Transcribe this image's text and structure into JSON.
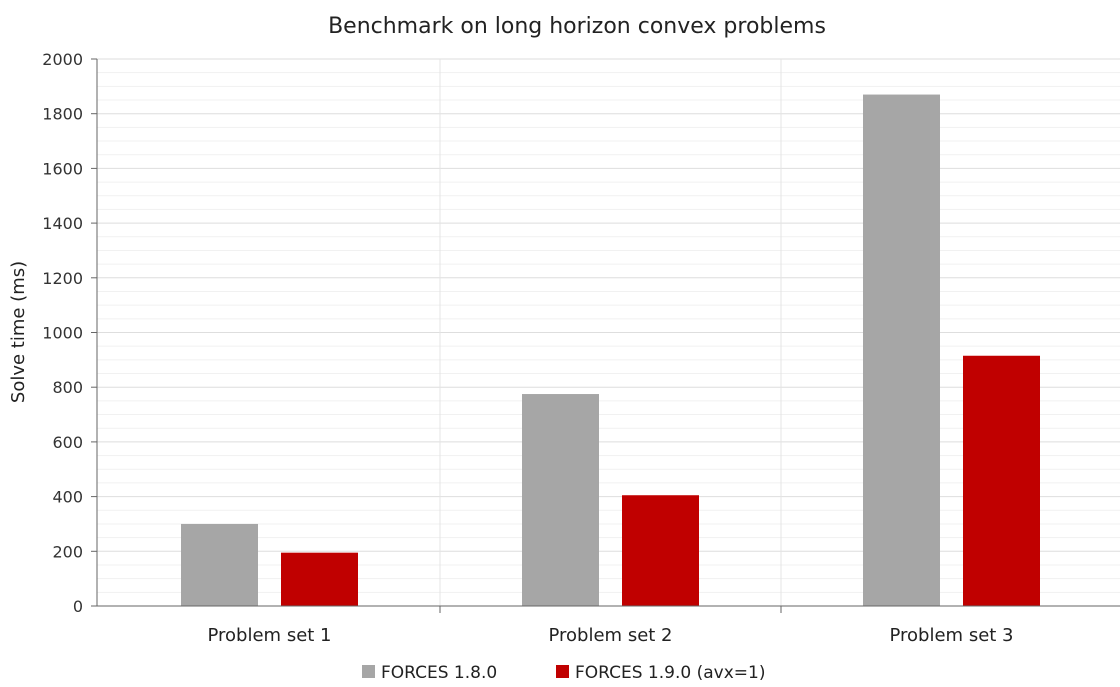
{
  "chart_data": {
    "type": "bar",
    "title": "Benchmark on long horizon convex problems",
    "xlabel": "",
    "ylabel": "Solve time (ms)",
    "ylim": [
      0,
      2000
    ],
    "yticks": [
      0,
      200,
      400,
      600,
      800,
      1000,
      1200,
      1400,
      1600,
      1800,
      2000
    ],
    "minor_grid_step": 50,
    "grid": true,
    "legend_position": "bottom-center",
    "categories": [
      "Problem set 1",
      "Problem set 2",
      "Problem set 3"
    ],
    "series": [
      {
        "name": "FORCES 1.8.0",
        "color": "#a6a6a6",
        "values": [
          300,
          775,
          1870
        ]
      },
      {
        "name": "FORCES 1.9.0 (avx=1)",
        "color": "#c00000",
        "values": [
          195,
          405,
          915
        ]
      }
    ]
  }
}
